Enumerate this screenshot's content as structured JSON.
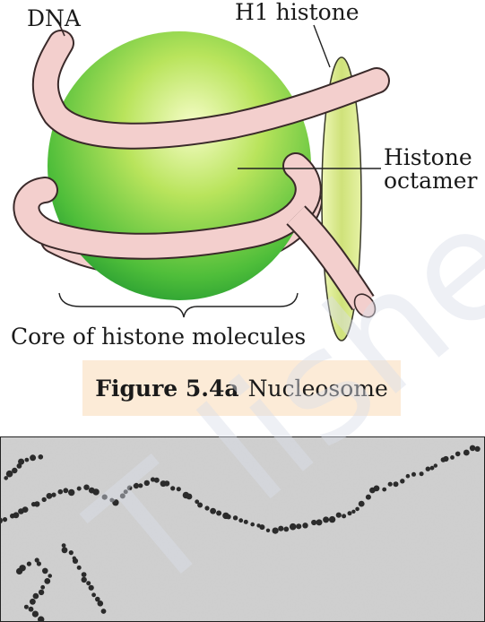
{
  "labels": {
    "dna": "DNA",
    "h1": "H1 histone",
    "octamer_line1": "Histone",
    "octamer_line2": "octamer",
    "core": "Core of histone molecules"
  },
  "caption": {
    "figure_number": "Figure 5.4a",
    "figure_title": "Nucleosome"
  },
  "watermark_text": "T   lished",
  "colors": {
    "sphere_light": "#f2fbb8",
    "sphere_mid": "#8fd23c",
    "sphere_dark": "#1f9a32",
    "dna_fill": "#f3cfcd",
    "dna_stroke": "#3a2a2a",
    "h1_fill": "#d9e98a",
    "caption_bg": "#fcebd7"
  }
}
